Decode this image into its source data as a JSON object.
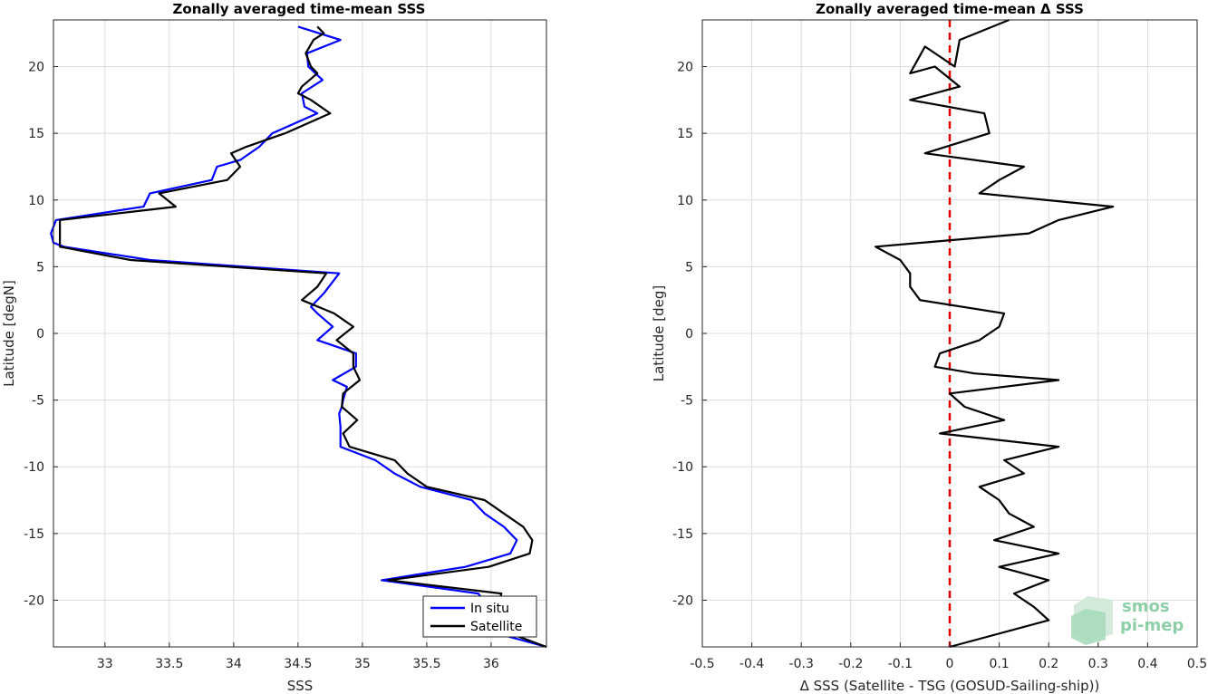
{
  "chart_data": [
    {
      "type": "line",
      "title": "Zonally averaged time-mean SSS",
      "xlabel": "SSS",
      "ylabel": "Latitude [degN]",
      "xlim": [
        32.6,
        36.43
      ],
      "ylim": [
        -23.5,
        23.5
      ],
      "xticks": [
        33,
        33.5,
        34,
        34.5,
        35,
        35.5,
        36
      ],
      "yticks": [
        -20,
        -15,
        -10,
        -5,
        0,
        5,
        10,
        15,
        20
      ],
      "grid": true,
      "legend": "bottom-right",
      "series": [
        {
          "name": "In situ",
          "color": "#0000ff",
          "points": [
            [
              34.5,
              23.0
            ],
            [
              34.83,
              22.0
            ],
            [
              34.57,
              21.0
            ],
            [
              34.58,
              20.0
            ],
            [
              34.69,
              19.0
            ],
            [
              34.53,
              18.0
            ],
            [
              34.55,
              17.0
            ],
            [
              34.65,
              16.5
            ],
            [
              34.3,
              15.0
            ],
            [
              34.2,
              14.0
            ],
            [
              34.05,
              13.0
            ],
            [
              33.87,
              12.5
            ],
            [
              33.83,
              11.5
            ],
            [
              33.35,
              10.5
            ],
            [
              33.3,
              9.5
            ],
            [
              32.62,
              8.5
            ],
            [
              32.58,
              7.5
            ],
            [
              32.6,
              6.8
            ],
            [
              32.68,
              6.5
            ],
            [
              33.35,
              5.5
            ],
            [
              34.82,
              4.5
            ],
            [
              34.7,
              3.0
            ],
            [
              34.6,
              2.0
            ],
            [
              34.65,
              1.5
            ],
            [
              34.77,
              0.5
            ],
            [
              34.65,
              -0.5
            ],
            [
              34.8,
              -1.0
            ],
            [
              34.95,
              -1.5
            ],
            [
              34.95,
              -2.5
            ],
            [
              34.77,
              -3.5
            ],
            [
              34.88,
              -4.0
            ],
            [
              34.85,
              -5.0
            ],
            [
              34.84,
              -5.5
            ],
            [
              34.82,
              -6.0
            ],
            [
              34.83,
              -7.0
            ],
            [
              34.83,
              -8.5
            ],
            [
              35.1,
              -9.5
            ],
            [
              35.25,
              -10.5
            ],
            [
              35.45,
              -11.5
            ],
            [
              35.85,
              -12.5
            ],
            [
              35.95,
              -13.5
            ],
            [
              36.1,
              -14.5
            ],
            [
              36.2,
              -15.5
            ],
            [
              36.15,
              -16.5
            ],
            [
              35.8,
              -17.5
            ],
            [
              35.15,
              -18.5
            ],
            [
              35.9,
              -19.5
            ],
            [
              35.98,
              -20.5
            ],
            [
              36.0,
              -21.5
            ],
            [
              36.05,
              -22.5
            ],
            [
              36.43,
              -23.5
            ]
          ]
        },
        {
          "name": "Satellite",
          "color": "#000000",
          "points": [
            [
              34.65,
              23.0
            ],
            [
              34.7,
              22.5
            ],
            [
              34.62,
              22.0
            ],
            [
              34.56,
              21.0
            ],
            [
              34.6,
              20.0
            ],
            [
              34.65,
              19.5
            ],
            [
              34.53,
              18.5
            ],
            [
              34.5,
              18.0
            ],
            [
              34.6,
              17.5
            ],
            [
              34.75,
              16.5
            ],
            [
              34.4,
              15.0
            ],
            [
              34.1,
              14.0
            ],
            [
              33.98,
              13.5
            ],
            [
              34.05,
              12.5
            ],
            [
              33.95,
              11.5
            ],
            [
              33.42,
              10.5
            ],
            [
              33.55,
              9.5
            ],
            [
              32.65,
              8.5
            ],
            [
              32.65,
              7.5
            ],
            [
              32.65,
              6.5
            ],
            [
              33.2,
              5.5
            ],
            [
              34.72,
              4.5
            ],
            [
              34.65,
              3.5
            ],
            [
              34.53,
              2.5
            ],
            [
              34.78,
              1.5
            ],
            [
              34.93,
              0.5
            ],
            [
              34.8,
              -0.5
            ],
            [
              34.93,
              -1.5
            ],
            [
              34.93,
              -2.5
            ],
            [
              34.98,
              -3.5
            ],
            [
              34.85,
              -4.5
            ],
            [
              34.84,
              -5.5
            ],
            [
              34.96,
              -6.5
            ],
            [
              34.85,
              -7.5
            ],
            [
              34.9,
              -8.5
            ],
            [
              35.25,
              -9.5
            ],
            [
              35.35,
              -10.5
            ],
            [
              35.5,
              -11.5
            ],
            [
              35.95,
              -12.5
            ],
            [
              36.1,
              -13.5
            ],
            [
              36.25,
              -14.5
            ],
            [
              36.32,
              -15.5
            ],
            [
              36.3,
              -16.5
            ],
            [
              35.98,
              -17.5
            ],
            [
              35.2,
              -18.5
            ],
            [
              36.08,
              -19.5
            ],
            [
              36.05,
              -20.5
            ],
            [
              36.05,
              -21.5
            ],
            [
              36.15,
              -22.5
            ],
            [
              36.43,
              -23.5
            ]
          ]
        }
      ]
    },
    {
      "type": "line",
      "title": "Zonally averaged time-mean Δ SSS",
      "xlabel": "Δ SSS (Satellite - TSG (GOSUD-Sailing-ship))",
      "ylabel": "Latitude [deg]",
      "xlim": [
        -0.5,
        0.5
      ],
      "ylim": [
        -23.5,
        23.5
      ],
      "xticks": [
        -0.5,
        -0.4,
        -0.3,
        -0.2,
        -0.1,
        0,
        0.1,
        0.2,
        0.3,
        0.4,
        0.5
      ],
      "yticks": [
        -20,
        -15,
        -10,
        -5,
        0,
        5,
        10,
        15,
        20
      ],
      "grid": true,
      "reference_line": {
        "x": 0,
        "color": "#e00000",
        "style": "dashed"
      },
      "series": [
        {
          "color": "#000000",
          "points": [
            [
              0.12,
              23.5
            ],
            [
              0.02,
              22.0
            ],
            [
              0.01,
              20.0
            ],
            [
              -0.05,
              21.5
            ],
            [
              -0.08,
              19.5
            ],
            [
              -0.03,
              20.0
            ],
            [
              0.02,
              18.5
            ],
            [
              -0.08,
              17.5
            ],
            [
              0.07,
              16.5
            ],
            [
              0.08,
              15.0
            ],
            [
              -0.05,
              13.5
            ],
            [
              0.15,
              12.5
            ],
            [
              0.1,
              11.5
            ],
            [
              0.06,
              10.5
            ],
            [
              0.33,
              9.5
            ],
            [
              0.22,
              8.5
            ],
            [
              0.16,
              7.5
            ],
            [
              -0.15,
              6.5
            ],
            [
              -0.1,
              5.5
            ],
            [
              -0.08,
              4.5
            ],
            [
              -0.08,
              3.5
            ],
            [
              -0.07,
              3.0
            ],
            [
              -0.06,
              2.5
            ],
            [
              0.11,
              1.5
            ],
            [
              0.1,
              0.5
            ],
            [
              0.06,
              -0.5
            ],
            [
              -0.02,
              -1.5
            ],
            [
              -0.03,
              -2.5
            ],
            [
              0.05,
              -3.0
            ],
            [
              0.22,
              -3.5
            ],
            [
              0.0,
              -4.5
            ],
            [
              0.03,
              -5.5
            ],
            [
              0.11,
              -6.5
            ],
            [
              -0.02,
              -7.5
            ],
            [
              0.22,
              -8.5
            ],
            [
              0.11,
              -9.5
            ],
            [
              0.15,
              -10.5
            ],
            [
              0.06,
              -11.5
            ],
            [
              0.1,
              -12.5
            ],
            [
              0.12,
              -13.5
            ],
            [
              0.17,
              -14.5
            ],
            [
              0.09,
              -15.5
            ],
            [
              0.22,
              -16.5
            ],
            [
              0.1,
              -17.5
            ],
            [
              0.2,
              -18.5
            ],
            [
              0.13,
              -19.5
            ],
            [
              0.17,
              -20.5
            ],
            [
              0.2,
              -21.5
            ],
            [
              0.0,
              -23.5
            ]
          ]
        }
      ]
    }
  ],
  "logo": {
    "line1": "smos",
    "line2": "pi-mep",
    "color": "#8fcfa8"
  }
}
